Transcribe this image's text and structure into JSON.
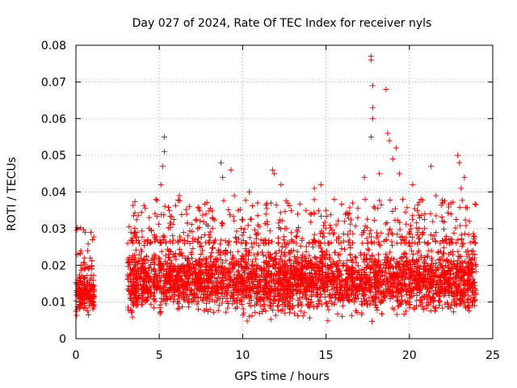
{
  "chart_data": {
    "type": "scatter",
    "title": "Day 027 of 2024, Rate Of TEC Index for receiver nyls",
    "xlabel": "GPS time / hours",
    "ylabel": "ROTI / TECUs",
    "xlim": [
      0,
      25
    ],
    "ylim": [
      0,
      0.08
    ],
    "x_ticks": [
      0,
      5,
      10,
      15,
      20,
      25
    ],
    "y_ticks": [
      0,
      0.01,
      0.02,
      0.03,
      0.04,
      0.05,
      0.06,
      0.07,
      0.08
    ],
    "x_tick_labels": [
      "0",
      "5",
      "10",
      "15",
      "20",
      "25"
    ],
    "y_tick_labels": [
      "0",
      "0.01",
      "0.02",
      "0.03",
      "0.04",
      "0.05",
      "0.06",
      "0.07",
      "0.08"
    ],
    "grid": true,
    "marker": "+",
    "marker_color": "#ff0000",
    "series": [
      {
        "name": "ROTI",
        "segments": [
          {
            "x_start": 0.0,
            "x_end": 1.1,
            "y_low": 0.005,
            "y_high": 0.019
          },
          {
            "x_start": 3.1,
            "x_end": 24.0,
            "y_low": 0.004,
            "y_high": 0.026
          }
        ],
        "points": [
          [
            0.1,
            0.016
          ],
          [
            0.3,
            0.02
          ],
          [
            0.5,
            0.022
          ],
          [
            0.7,
            0.024
          ],
          [
            0.9,
            0.029
          ],
          [
            1.0,
            0.027
          ],
          [
            3.3,
            0.029
          ],
          [
            3.8,
            0.026
          ],
          [
            4.4,
            0.033
          ],
          [
            4.8,
            0.038
          ],
          [
            5.1,
            0.042
          ],
          [
            5.3,
            0.055
          ],
          [
            5.3,
            0.051
          ],
          [
            5.2,
            0.047
          ],
          [
            5.6,
            0.035
          ],
          [
            6.2,
            0.039
          ],
          [
            6.8,
            0.036
          ],
          [
            7.3,
            0.03
          ],
          [
            7.8,
            0.034
          ],
          [
            8.2,
            0.033
          ],
          [
            8.7,
            0.048
          ],
          [
            8.8,
            0.044
          ],
          [
            9.3,
            0.046
          ],
          [
            9.5,
            0.039
          ],
          [
            10.4,
            0.04
          ],
          [
            10.9,
            0.037
          ],
          [
            11.4,
            0.034
          ],
          [
            11.8,
            0.046
          ],
          [
            11.9,
            0.045
          ],
          [
            12.3,
            0.042
          ],
          [
            12.7,
            0.037
          ],
          [
            13.3,
            0.034
          ],
          [
            13.8,
            0.035
          ],
          [
            14.3,
            0.041
          ],
          [
            14.7,
            0.042
          ],
          [
            15.0,
            0.035
          ],
          [
            15.5,
            0.038
          ],
          [
            16.1,
            0.032
          ],
          [
            16.6,
            0.037
          ],
          [
            16.9,
            0.033
          ],
          [
            17.3,
            0.044
          ],
          [
            17.7,
            0.077
          ],
          [
            17.7,
            0.076
          ],
          [
            17.8,
            0.069
          ],
          [
            17.8,
            0.063
          ],
          [
            17.8,
            0.06
          ],
          [
            17.7,
            0.055
          ],
          [
            18.2,
            0.045
          ],
          [
            18.6,
            0.068
          ],
          [
            18.7,
            0.056
          ],
          [
            18.8,
            0.054
          ],
          [
            19.0,
            0.049
          ],
          [
            19.2,
            0.052
          ],
          [
            19.4,
            0.045
          ],
          [
            19.6,
            0.038
          ],
          [
            20.2,
            0.042
          ],
          [
            20.7,
            0.038
          ],
          [
            21.3,
            0.047
          ],
          [
            21.6,
            0.039
          ],
          [
            22.0,
            0.037
          ],
          [
            22.5,
            0.034
          ],
          [
            22.9,
            0.05
          ],
          [
            23.0,
            0.048
          ],
          [
            23.1,
            0.041
          ],
          [
            23.3,
            0.044
          ],
          [
            23.6,
            0.032
          ],
          [
            23.9,
            0.028
          ]
        ]
      }
    ]
  }
}
